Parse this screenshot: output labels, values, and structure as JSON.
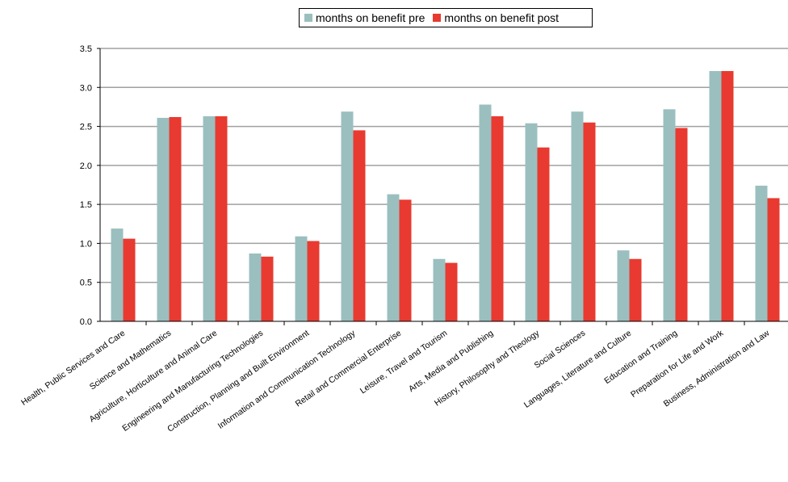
{
  "chart_data": {
    "type": "bar",
    "categories": [
      "Health, Public Services and Care",
      "Science and Mathematics",
      "Agriculture, Horticulture and Animal Care",
      "Engineering and Manufacturing Technologies",
      "Construction, Planning and Built Environment",
      "Information and Communication Technology",
      "Retail and Commercial Enterprise",
      "Leisure, Travel and Tourism",
      "Arts, Media and Publishing",
      "History, Philosophy and Theology",
      "Social Sciences",
      "Languages, Literature and Culture",
      "Education and Training",
      "Preparation for Life and Work",
      "Business, Administration and Law"
    ],
    "series": [
      {
        "name": "months on benefit pre",
        "color": "#9bbfbf",
        "values": [
          1.19,
          2.61,
          2.63,
          0.87,
          1.09,
          2.69,
          1.63,
          0.8,
          2.78,
          2.54,
          2.69,
          0.91,
          2.72,
          3.21,
          1.74
        ]
      },
      {
        "name": "months on benefit post",
        "color": "#e83a30",
        "values": [
          1.06,
          2.62,
          2.63,
          0.83,
          1.03,
          2.45,
          1.56,
          0.75,
          2.63,
          2.23,
          2.55,
          0.8,
          2.48,
          3.21,
          1.58
        ]
      }
    ],
    "yticks": [
      "0.0",
      "0.5",
      "1.0",
      "1.5",
      "2.0",
      "2.5",
      "3.0",
      "3.5"
    ],
    "ylim": [
      0,
      3.5
    ],
    "grid": true,
    "legend": "top-center"
  }
}
